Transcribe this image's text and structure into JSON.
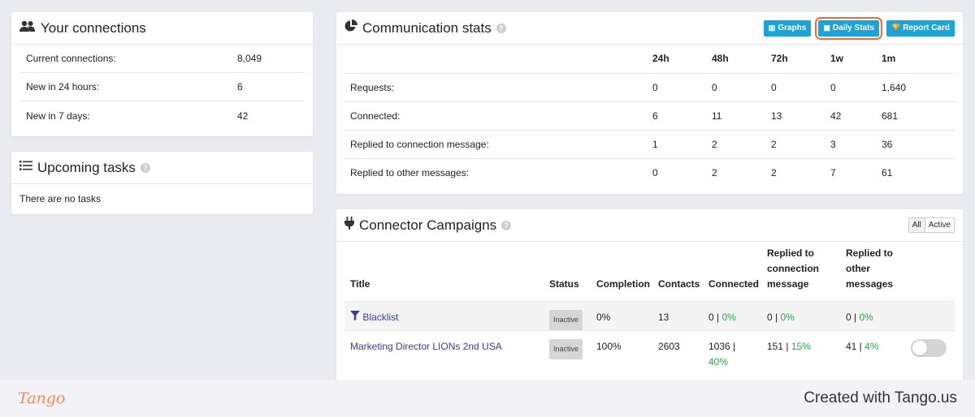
{
  "connections": {
    "title": "Your connections",
    "rows": [
      {
        "label": "Current connections:",
        "value": "8,049"
      },
      {
        "label": "New in 24 hours:",
        "value": "6"
      },
      {
        "label": "New in 7 days:",
        "value": "42"
      }
    ]
  },
  "tasks": {
    "title": "Upcoming tasks",
    "empty": "There are no tasks"
  },
  "stats": {
    "title": "Communication stats",
    "buttons": {
      "graphs": "Graphs",
      "daily": "Daily Stats",
      "report": "Report Card"
    },
    "columns": [
      "24h",
      "48h",
      "72h",
      "1w",
      "1m"
    ],
    "rows": [
      {
        "label": "Requests:",
        "values": [
          "0",
          "0",
          "0",
          "0",
          "1,640"
        ]
      },
      {
        "label": "Connected:",
        "values": [
          "6",
          "11",
          "13",
          "42",
          "681"
        ]
      },
      {
        "label": "Replied to connection message:",
        "values": [
          "1",
          "2",
          "2",
          "3",
          "36"
        ]
      },
      {
        "label": "Replied to other messages:",
        "values": [
          "0",
          "2",
          "2",
          "7",
          "61"
        ]
      }
    ]
  },
  "campaigns": {
    "title": "Connector Campaigns",
    "filter": {
      "all": "All",
      "active": "Active"
    },
    "headers": {
      "title": "Title",
      "status": "Status",
      "completion": "Completion",
      "contacts": "Contacts",
      "connected": "Connected",
      "replied_conn_1": "Replied to",
      "replied_conn_2": "connection",
      "replied_conn_3": "message",
      "replied_other_1": "Replied to",
      "replied_other_2": "other",
      "replied_other_3": "messages"
    },
    "rows": [
      {
        "title": "Blacklist",
        "status": "Inactive",
        "completion": "0%",
        "contacts": "13",
        "connected": "0 | ",
        "connected_pct": "0%",
        "replied_conn": "0 | ",
        "replied_conn_pct": "0%",
        "replied_other": "0 | ",
        "replied_other_pct": "0%"
      },
      {
        "title": "Marketing Director LIONs 2nd USA",
        "status": "Inactive",
        "completion": "100%",
        "contacts": "2603",
        "connected": "1036 | ",
        "connected_pct": "40%",
        "replied_conn": "151 | ",
        "replied_conn_pct": "15%",
        "replied_other": "41 | ",
        "replied_other_pct": "4%"
      }
    ]
  },
  "footer": {
    "logo": "Tango",
    "created": "Created with Tango.us"
  },
  "colors": {
    "accent": "#1aa4d8",
    "highlight": "#f06a3c",
    "green": "#2ea44f",
    "link": "#3a3f8f"
  }
}
